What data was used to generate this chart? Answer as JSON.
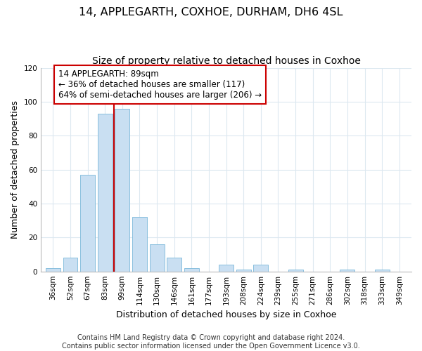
{
  "title": "14, APPLEGARTH, COXHOE, DURHAM, DH6 4SL",
  "subtitle": "Size of property relative to detached houses in Coxhoe",
  "xlabel": "Distribution of detached houses by size in Coxhoe",
  "ylabel": "Number of detached properties",
  "bar_labels": [
    "36sqm",
    "52sqm",
    "67sqm",
    "83sqm",
    "99sqm",
    "114sqm",
    "130sqm",
    "146sqm",
    "161sqm",
    "177sqm",
    "193sqm",
    "208sqm",
    "224sqm",
    "239sqm",
    "255sqm",
    "271sqm",
    "286sqm",
    "302sqm",
    "318sqm",
    "333sqm",
    "349sqm"
  ],
  "bar_values": [
    2,
    8,
    57,
    93,
    96,
    32,
    16,
    8,
    2,
    0,
    4,
    1,
    4,
    0,
    1,
    0,
    0,
    1,
    0,
    1,
    0
  ],
  "bar_color": "#c9dff2",
  "bar_edge_color": "#7ab8d9",
  "vline_color": "#cc0000",
  "annotation_text": "14 APPLEGARTH: 89sqm\n← 36% of detached houses are smaller (117)\n64% of semi-detached houses are larger (206) →",
  "annotation_box_color": "white",
  "annotation_box_edge_color": "#cc0000",
  "ylim": [
    0,
    120
  ],
  "yticks": [
    0,
    20,
    40,
    60,
    80,
    100,
    120
  ],
  "footer_line1": "Contains HM Land Registry data © Crown copyright and database right 2024.",
  "footer_line2": "Contains public sector information licensed under the Open Government Licence v3.0.",
  "bg_color": "white",
  "grid_color": "#dce8f0",
  "title_fontsize": 11.5,
  "subtitle_fontsize": 10,
  "axis_label_fontsize": 9,
  "tick_fontsize": 7.5,
  "annotation_fontsize": 8.5,
  "footer_fontsize": 7
}
